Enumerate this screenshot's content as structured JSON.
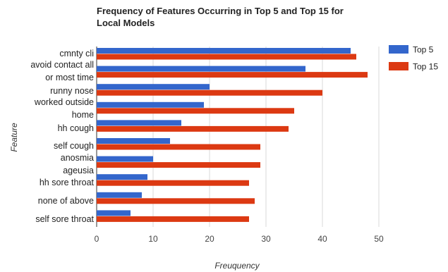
{
  "chart_data": {
    "type": "bar",
    "orientation": "horizontal",
    "title_lines": [
      "Frequency of Features Occurring in Top 5 and Top 15 for",
      "Local Models"
    ],
    "xlabel": "Freuquency",
    "ylabel": "Feature",
    "xlim": [
      0,
      50
    ],
    "xticks": [
      0,
      10,
      20,
      30,
      40,
      50
    ],
    "grid": true,
    "legend_position": "right",
    "category_labels": [
      "cmnty cli",
      "avoid contact all",
      "or most time",
      "runny nose",
      "worked outside",
      "home",
      "hh cough",
      "self cough",
      "anosmia",
      "ageusia",
      "hh sore throat",
      "none of above",
      "self sore throat"
    ],
    "categories": [
      "cmnty cli",
      "avoid contact all or most time",
      "runny nose",
      "worked outside home",
      "hh cough",
      "self cough",
      "anosmia ageusia",
      "hh sore throat",
      "none of above",
      "self sore throat"
    ],
    "series": [
      {
        "name": "Top 5",
        "color": "#3366cc",
        "values": [
          45,
          37,
          20,
          19,
          15,
          13,
          10,
          9,
          8,
          6
        ]
      },
      {
        "name": "Top 15",
        "color": "#dc3912",
        "values": [
          46,
          48,
          40,
          35,
          34,
          29,
          29,
          27,
          28,
          27
        ]
      }
    ]
  }
}
